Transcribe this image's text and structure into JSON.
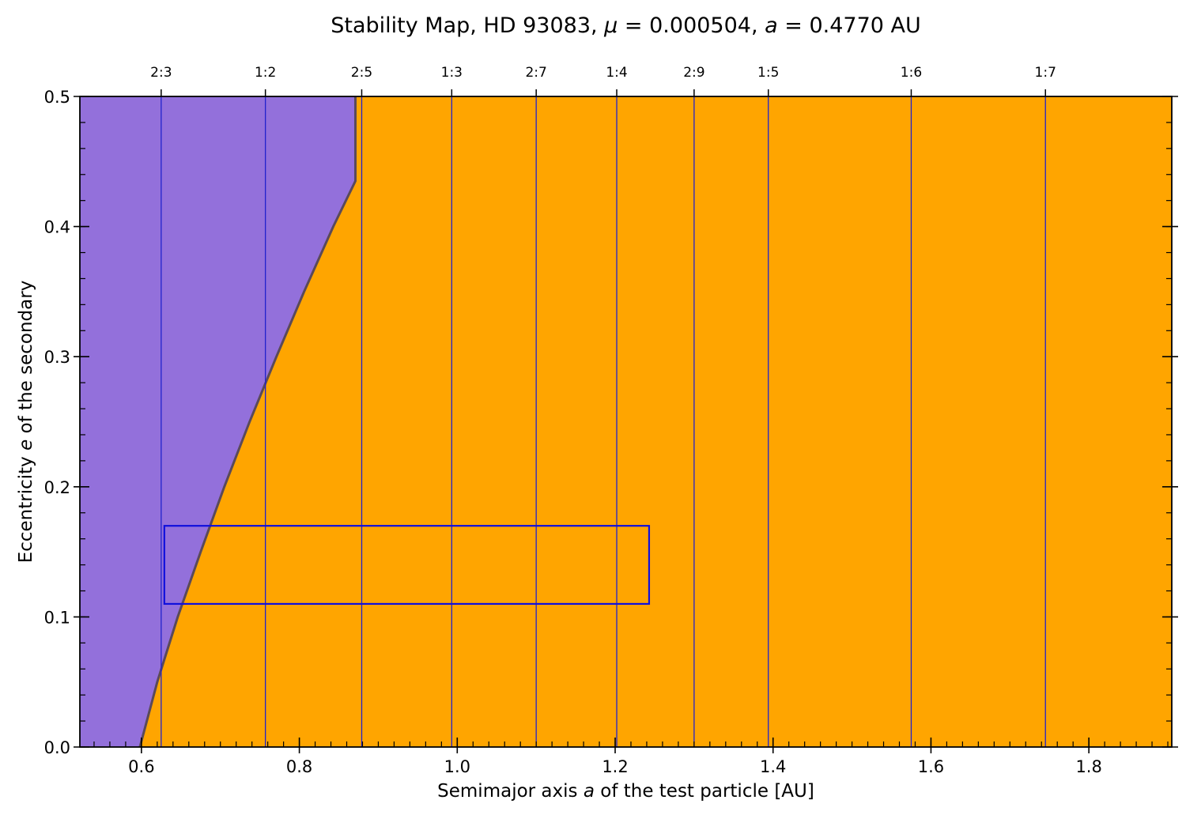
{
  "chart_data": {
    "type": "area",
    "title_parts": [
      "Stability Map, HD 93083, ",
      "μ",
      " = 0.000504, ",
      "a",
      " = 0.4770 AU"
    ],
    "xlabel_parts": [
      "Semimajor axis ",
      "a",
      " of the test particle [AU]"
    ],
    "ylabel_parts": [
      "Eccentricity ",
      "e",
      " of the secondary"
    ],
    "xlim": [
      0.522,
      1.905
    ],
    "ylim": [
      0.0,
      0.5
    ],
    "x_ticks": [
      0.6,
      0.8,
      1.0,
      1.2,
      1.4,
      1.6,
      1.8
    ],
    "x_tick_labels": [
      "0.6",
      "0.8",
      "1.0",
      "1.2",
      "1.4",
      "1.6",
      "1.8"
    ],
    "y_ticks": [
      0.0,
      0.1,
      0.2,
      0.3,
      0.4,
      0.5
    ],
    "y_tick_labels": [
      "0.0",
      "0.1",
      "0.2",
      "0.3",
      "0.4",
      "0.5"
    ],
    "regions": {
      "unstable_color": "#9370DB",
      "stable_color": "#FFA500",
      "boundary_color": "#5a4a5a"
    },
    "boundary_curve": {
      "x": [
        0.598,
        0.62,
        0.646,
        0.675,
        0.705,
        0.737,
        0.771,
        0.806,
        0.843,
        0.871
      ],
      "y": [
        0.0,
        0.05,
        0.1,
        0.15,
        0.2,
        0.25,
        0.3,
        0.35,
        0.4,
        0.435
      ]
    },
    "boundary_top_x": 0.871,
    "resonances": [
      {
        "label": "2:3",
        "x": 0.625
      },
      {
        "label": "1:2",
        "x": 0.757
      },
      {
        "label": "2:5",
        "x": 0.879
      },
      {
        "label": "1:3",
        "x": 0.993
      },
      {
        "label": "2:7",
        "x": 1.1
      },
      {
        "label": "1:4",
        "x": 1.202
      },
      {
        "label": "2:9",
        "x": 1.3
      },
      {
        "label": "1:5",
        "x": 1.394
      },
      {
        "label": "1:6",
        "x": 1.575
      },
      {
        "label": "1:7",
        "x": 1.745
      }
    ],
    "resonance_line_color": "#2222cc",
    "box": {
      "x0": 0.629,
      "x1": 1.243,
      "y0": 0.11,
      "y1": 0.17,
      "color": "#1010dd"
    }
  }
}
